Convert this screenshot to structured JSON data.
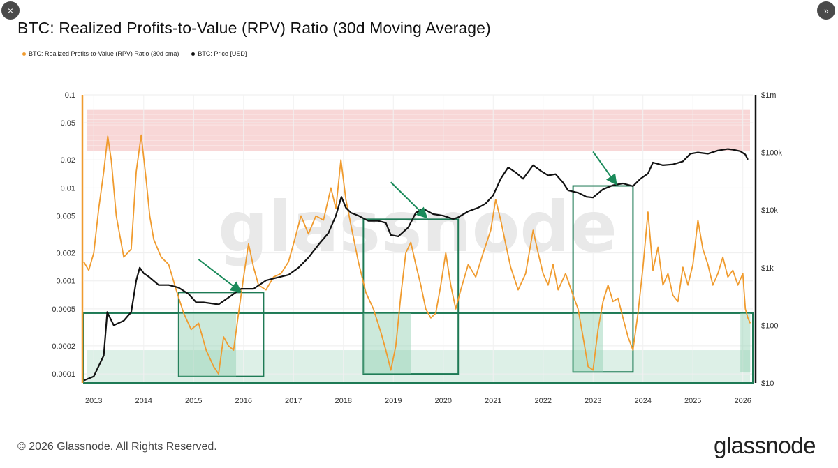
{
  "ui": {
    "close_icon": "×",
    "expand_icon": "»",
    "copyright": "© 2026 Glassnode. All Rights Reserved.",
    "logo": "glassnode"
  },
  "chart_data": {
    "type": "line",
    "title": "BTC: Realized Profits-to-Value (RPV) Ratio (30d Moving Average)",
    "watermark": "glassnode",
    "legend": [
      {
        "name": "BTC: Realized Profits-to-Value (RPV) Ratio (30d sma)",
        "color": "#f09b2e"
      },
      {
        "name": "BTC: Price [USD]",
        "color": "#111111"
      }
    ],
    "x_ticks": [
      "2013",
      "2014",
      "2015",
      "2016",
      "2017",
      "2018",
      "2019",
      "2020",
      "2021",
      "2022",
      "2023",
      "2024",
      "2025",
      "2026"
    ],
    "x_range": [
      2012.8,
      2026.2
    ],
    "y_left": {
      "scale": "log",
      "range": [
        8e-05,
        0.1
      ],
      "ticks": [
        "0.1",
        "0.05",
        "0.02",
        "0.01",
        "0.005",
        "0.002",
        "0.001",
        "0.0005",
        "0.0002",
        "0.0001"
      ]
    },
    "y_right": {
      "scale": "log",
      "range": [
        10,
        1000000
      ],
      "ticks": [
        "$1m",
        "$100k",
        "$10k",
        "$1k",
        "$100",
        "$10"
      ]
    },
    "zones": [
      {
        "name": "high-profit-zone",
        "axis": "left",
        "from": 0.025,
        "to": 0.07,
        "color": "#f5c6c6"
      },
      {
        "name": "low-profit-zone",
        "axis": "left",
        "from": 8e-05,
        "to": 0.00018,
        "color": "#cfeadd"
      }
    ],
    "highlight_boxes": [
      {
        "x0": 2014.7,
        "x1": 2016.4,
        "y0": 9.4e-05,
        "y1": 0.00075
      },
      {
        "x0": 2018.4,
        "x1": 2020.3,
        "y0": 0.0001,
        "y1": 0.0046
      },
      {
        "x0": 2022.6,
        "x1": 2023.8,
        "y0": 0.000105,
        "y1": 0.0105
      },
      {
        "x0": 2012.8,
        "x1": 2026.2,
        "y0": 8e-05,
        "y1": 0.00045
      }
    ],
    "arrows": [
      {
        "from": [
          2015.1,
          0.0017
        ],
        "to": [
          2015.92,
          0.00078
        ]
      },
      {
        "from": [
          2018.95,
          0.0115
        ],
        "to": [
          2019.65,
          0.0049
        ]
      },
      {
        "from": [
          2023.0,
          0.0245
        ],
        "to": [
          2023.45,
          0.0112
        ]
      }
    ],
    "series": [
      {
        "name": "BTC: Realized Profits-to-Value (RPV) Ratio (30d sma)",
        "axis": "left",
        "color": "#f09b2e",
        "x": [
          2012.8,
          2012.9,
          2013.0,
          2013.1,
          2013.2,
          2013.28,
          2013.35,
          2013.45,
          2013.6,
          2013.75,
          2013.85,
          2013.95,
          2014.05,
          2014.12,
          2014.2,
          2014.35,
          2014.5,
          2014.65,
          2014.8,
          2014.95,
          2015.1,
          2015.25,
          2015.4,
          2015.5,
          2015.6,
          2015.7,
          2015.8,
          2015.9,
          2016.0,
          2016.1,
          2016.2,
          2016.3,
          2016.45,
          2016.6,
          2016.75,
          2016.9,
          2017.0,
          2017.15,
          2017.3,
          2017.45,
          2017.6,
          2017.75,
          2017.85,
          2017.95,
          2018.05,
          2018.15,
          2018.3,
          2018.45,
          2018.6,
          2018.75,
          2018.85,
          2018.95,
          2019.05,
          2019.15,
          2019.25,
          2019.35,
          2019.45,
          2019.55,
          2019.65,
          2019.75,
          2019.85,
          2019.95,
          2020.05,
          2020.15,
          2020.25,
          2020.35,
          2020.5,
          2020.65,
          2020.8,
          2020.95,
          2021.05,
          2021.15,
          2021.25,
          2021.35,
          2021.5,
          2021.65,
          2021.8,
          2021.9,
          2022.0,
          2022.1,
          2022.2,
          2022.3,
          2022.45,
          2022.6,
          2022.7,
          2022.8,
          2022.9,
          2023.0,
          2023.1,
          2023.2,
          2023.3,
          2023.4,
          2023.5,
          2023.6,
          2023.7,
          2023.8,
          2023.9,
          2024.0,
          2024.1,
          2024.2,
          2024.3,
          2024.4,
          2024.5,
          2024.6,
          2024.7,
          2024.8,
          2024.9,
          2025.0,
          2025.1,
          2025.2,
          2025.3,
          2025.4,
          2025.5,
          2025.6,
          2025.7,
          2025.8,
          2025.9,
          2026.0,
          2026.05,
          2026.1,
          2026.15
        ],
        "y": [
          0.0016,
          0.0013,
          0.002,
          0.006,
          0.015,
          0.036,
          0.02,
          0.005,
          0.0018,
          0.0022,
          0.015,
          0.037,
          0.012,
          0.005,
          0.0028,
          0.0018,
          0.0015,
          0.0008,
          0.00045,
          0.0003,
          0.00035,
          0.00018,
          0.00012,
          0.0001,
          0.00025,
          0.0002,
          0.00018,
          0.00045,
          0.0011,
          0.0025,
          0.0014,
          0.0009,
          0.0008,
          0.0011,
          0.0012,
          0.0016,
          0.0025,
          0.005,
          0.0032,
          0.005,
          0.0045,
          0.01,
          0.006,
          0.02,
          0.0075,
          0.004,
          0.0016,
          0.00075,
          0.0005,
          0.00028,
          0.00018,
          0.00011,
          0.0002,
          0.0007,
          0.002,
          0.0026,
          0.0015,
          0.0009,
          0.0005,
          0.0004,
          0.00045,
          0.0009,
          0.002,
          0.0009,
          0.0005,
          0.0008,
          0.0015,
          0.0011,
          0.002,
          0.0035,
          0.0075,
          0.0045,
          0.0025,
          0.0014,
          0.0008,
          0.0012,
          0.0035,
          0.002,
          0.0012,
          0.0009,
          0.0015,
          0.0008,
          0.0012,
          0.0007,
          0.0005,
          0.00025,
          0.00012,
          0.00011,
          0.0003,
          0.0006,
          0.0009,
          0.0006,
          0.00065,
          0.0004,
          0.00025,
          0.00018,
          0.00045,
          0.0014,
          0.0055,
          0.0013,
          0.0023,
          0.0009,
          0.0012,
          0.0007,
          0.0006,
          0.0014,
          0.0009,
          0.0015,
          0.0045,
          0.0022,
          0.0015,
          0.0009,
          0.0012,
          0.0018,
          0.0011,
          0.0013,
          0.0009,
          0.0012,
          0.0005,
          0.0004,
          0.00035
        ]
      },
      {
        "name": "BTC: Price [USD]",
        "axis": "right",
        "color": "#111111",
        "x": [
          2012.8,
          2013.0,
          2013.2,
          2013.27,
          2013.3,
          2013.4,
          2013.6,
          2013.75,
          2013.85,
          2013.92,
          2014.0,
          2014.1,
          2014.3,
          2014.5,
          2014.7,
          2014.9,
          2015.05,
          2015.2,
          2015.5,
          2015.8,
          2015.95,
          2016.2,
          2016.45,
          2016.6,
          2016.9,
          2017.1,
          2017.3,
          2017.5,
          2017.7,
          2017.85,
          2017.96,
          2018.05,
          2018.15,
          2018.3,
          2018.5,
          2018.7,
          2018.85,
          2018.95,
          2019.1,
          2019.3,
          2019.45,
          2019.6,
          2019.8,
          2020.0,
          2020.2,
          2020.3,
          2020.5,
          2020.7,
          2020.85,
          2021.0,
          2021.15,
          2021.3,
          2021.45,
          2021.6,
          2021.8,
          2021.95,
          2022.1,
          2022.25,
          2022.4,
          2022.5,
          2022.7,
          2022.87,
          2023.0,
          2023.2,
          2023.4,
          2023.6,
          2023.8,
          2023.95,
          2024.1,
          2024.2,
          2024.4,
          2024.6,
          2024.8,
          2024.95,
          2025.1,
          2025.3,
          2025.5,
          2025.7,
          2025.8,
          2025.95,
          2026.05,
          2026.1
        ],
        "y": [
          11,
          13,
          30,
          170,
          150,
          100,
          120,
          170,
          600,
          1000,
          800,
          700,
          500,
          500,
          450,
          350,
          250,
          250,
          230,
          350,
          430,
          430,
          600,
          650,
          750,
          1000,
          1500,
          2500,
          4000,
          8000,
          17000,
          11000,
          9000,
          8000,
          6500,
          6500,
          6000,
          3700,
          3500,
          5000,
          9000,
          10500,
          8500,
          8000,
          7000,
          7500,
          9500,
          11000,
          13000,
          18000,
          35000,
          55000,
          45000,
          35000,
          60000,
          48000,
          40000,
          42000,
          30000,
          22000,
          20000,
          17000,
          16500,
          23000,
          27000,
          29000,
          26000,
          35000,
          43000,
          67000,
          60000,
          62000,
          70000,
          95000,
          100000,
          95000,
          108000,
          115000,
          112000,
          105000,
          92000,
          75000
        ]
      }
    ]
  }
}
